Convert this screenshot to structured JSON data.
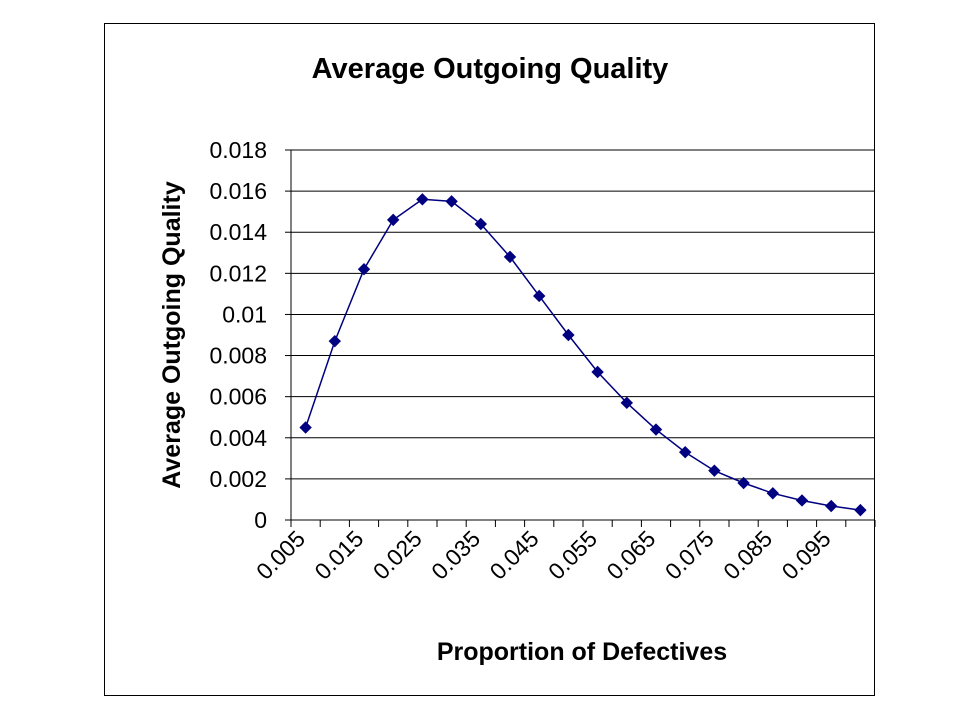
{
  "chart_data": {
    "type": "line",
    "title": "Average Outgoing Quality",
    "xlabel": "Proportion of Defectives",
    "ylabel": "Average Outgoing Quality",
    "x": [
      0.005,
      0.01,
      0.015,
      0.02,
      0.025,
      0.03,
      0.035,
      0.04,
      0.045,
      0.05,
      0.055,
      0.06,
      0.065,
      0.07,
      0.075,
      0.08,
      0.085,
      0.09,
      0.095,
      0.1
    ],
    "x_tick_labels": [
      "0.005",
      "0.015",
      "0.025",
      "0.035",
      "0.045",
      "0.055",
      "0.065",
      "0.075",
      "0.085",
      "0.095"
    ],
    "y_tick_labels": [
      "0",
      "0.002",
      "0.004",
      "0.006",
      "0.008",
      "0.01",
      "0.012",
      "0.014",
      "0.016",
      "0.018"
    ],
    "ylim": [
      0,
      0.018
    ],
    "grid": true,
    "legend": "none",
    "series": [
      {
        "values": [
          0.0045,
          0.0087,
          0.0122,
          0.0146,
          0.0156,
          0.0155,
          0.0144,
          0.0128,
          0.0109,
          0.009,
          0.0072,
          0.0057,
          0.0044,
          0.0033,
          0.0024,
          0.0018,
          0.0013,
          0.00095,
          0.00068,
          0.00048
        ],
        "color": "#000080"
      }
    ]
  }
}
